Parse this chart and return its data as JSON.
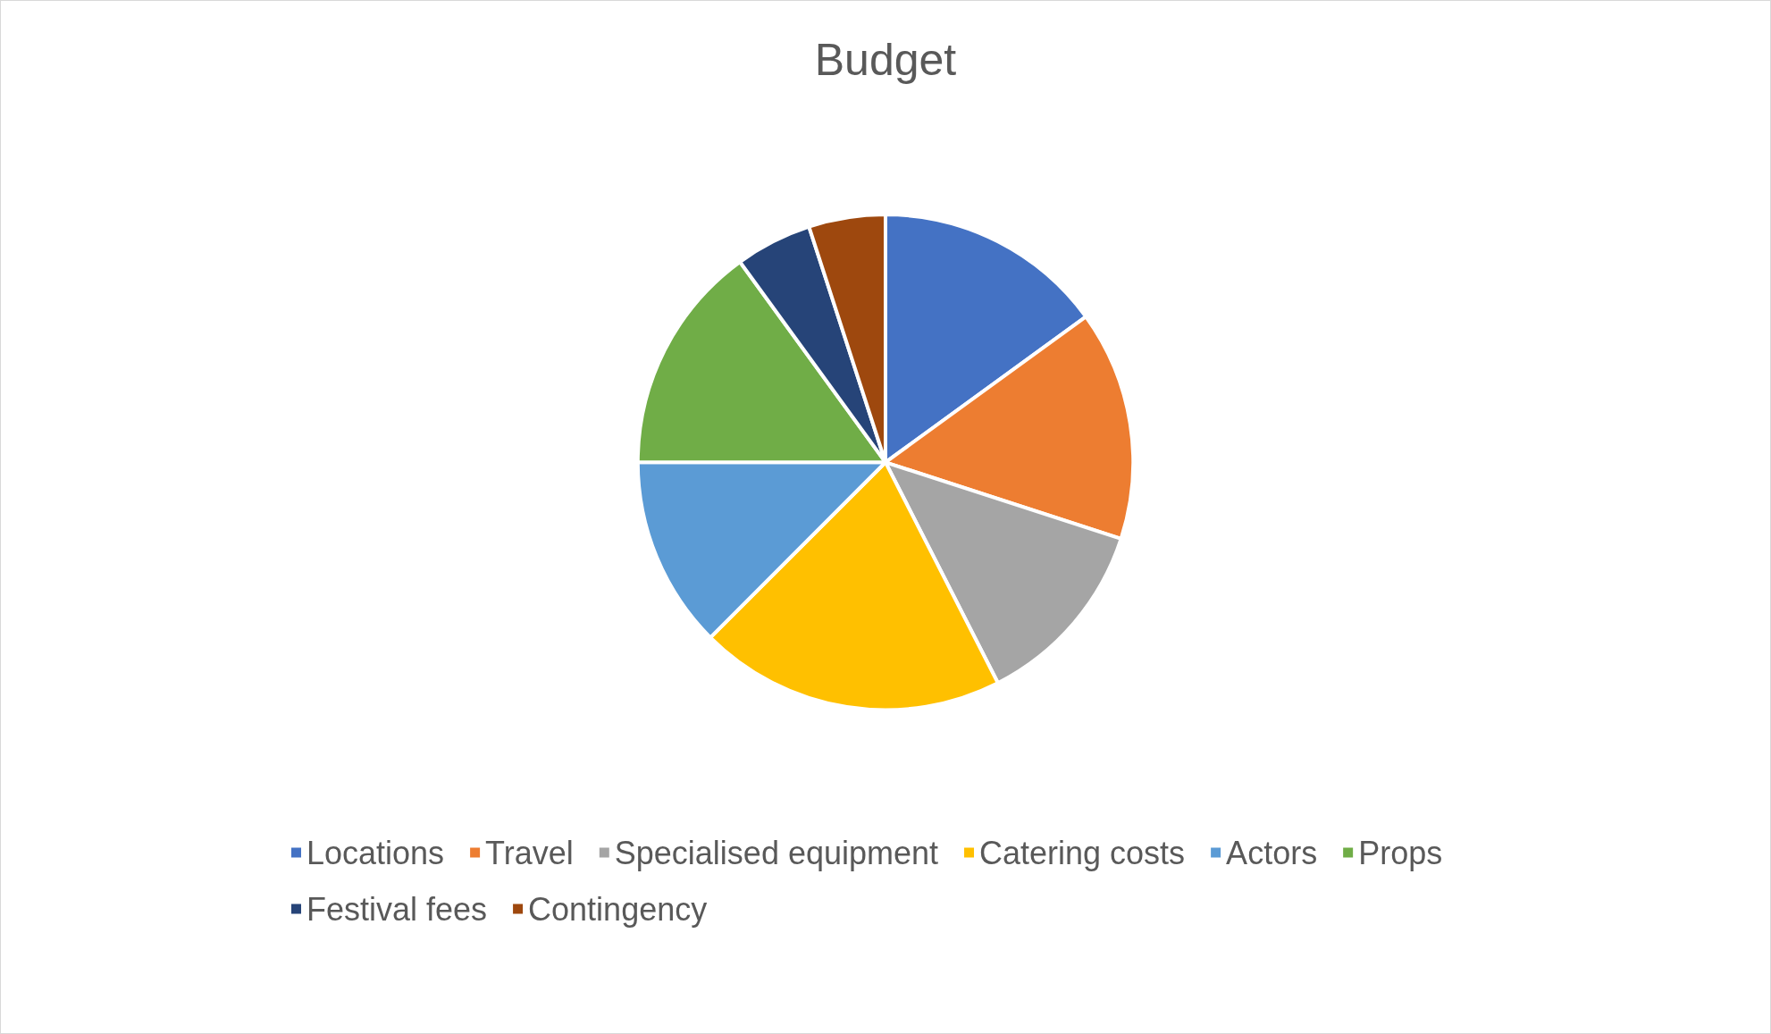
{
  "chart_data": {
    "type": "pie",
    "title": "Budget",
    "categories": [
      "Locations",
      "Travel",
      "Specialised equipment",
      "Catering costs",
      "Actors",
      "Props",
      "Festival fees",
      "Contingency"
    ],
    "values": [
      15,
      15,
      12.5,
      20,
      12.5,
      15,
      5,
      5
    ],
    "colors": [
      "#4472c4",
      "#ed7d31",
      "#a5a5a5",
      "#ffc000",
      "#5b9bd5",
      "#70ad47",
      "#264478",
      "#9e480e"
    ],
    "legend": "bottom"
  }
}
